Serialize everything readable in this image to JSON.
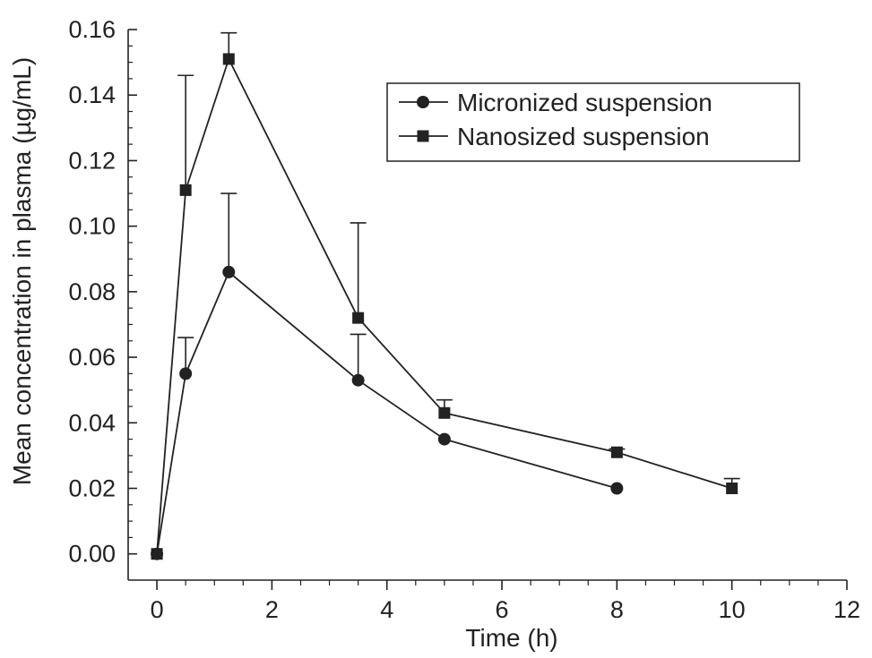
{
  "chart_data": {
    "type": "line",
    "title": "",
    "xlabel": "Time (h)",
    "ylabel": "Mean concentration in plasma (µg/mL)",
    "xlim": [
      -0.5,
      12
    ],
    "ylim": [
      -0.008,
      0.16
    ],
    "x_ticks": [
      0,
      2,
      4,
      6,
      8,
      10,
      12
    ],
    "x_tick_labels": [
      "0",
      "2",
      "4",
      "6",
      "8",
      "10",
      "12"
    ],
    "y_ticks": [
      0.0,
      0.02,
      0.04,
      0.06,
      0.08,
      0.1,
      0.12,
      0.14,
      0.16
    ],
    "y_tick_labels": [
      "0.00",
      "0.02",
      "0.04",
      "0.06",
      "0.08",
      "0.10",
      "0.12",
      "0.14",
      "0.16"
    ],
    "grid": false,
    "legend_position": "top-right",
    "series": [
      {
        "name": "Micronized suspension",
        "marker": "circle",
        "color": "#222222",
        "x": [
          0,
          0.5,
          1.25,
          3.5,
          5,
          8
        ],
        "y": [
          0.0,
          0.055,
          0.086,
          0.053,
          0.035,
          0.02
        ],
        "error_upper": [
          0.0,
          0.011,
          0.024,
          0.014,
          0.0,
          0.0
        ]
      },
      {
        "name": "Nanosized suspension",
        "marker": "square",
        "color": "#222222",
        "x": [
          0,
          0.5,
          1.25,
          3.5,
          5,
          8,
          10
        ],
        "y": [
          0.0,
          0.111,
          0.151,
          0.072,
          0.043,
          0.031,
          0.02
        ],
        "error_upper": [
          0.0,
          0.035,
          0.008,
          0.029,
          0.004,
          0.001,
          0.003
        ]
      }
    ]
  }
}
